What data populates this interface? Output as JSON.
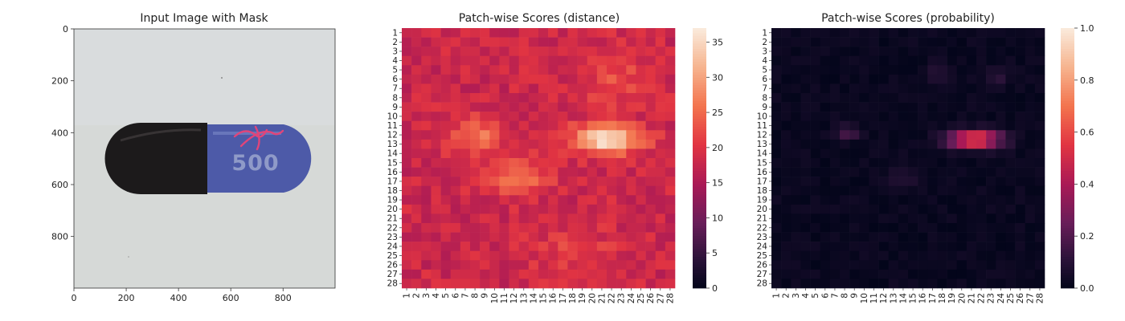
{
  "panels": [
    {
      "title": "Input Image with Mask",
      "image": {
        "background": "#d5d8d6",
        "pill_dark_color": "#1c1a1b",
        "pill_blue_color": "#4d5aa8",
        "imprint": "500",
        "mask_color": "#e0457a"
      }
    },
    {
      "title": "Patch-wise Scores (distance)"
    },
    {
      "title": "Patch-wise Scores (probability)"
    }
  ],
  "chart_data": [
    {
      "type": "image",
      "title": "Input Image with Mask",
      "xlim": [
        0,
        999
      ],
      "ylim": [
        999,
        0
      ],
      "x_ticks": [
        0,
        200,
        400,
        600,
        800
      ],
      "y_ticks": [
        0,
        200,
        400,
        600,
        800
      ]
    },
    {
      "type": "heatmap",
      "title": "Patch-wise Scores (distance)",
      "rows": 28,
      "cols": 28,
      "row_labels": [
        "1",
        "2",
        "3",
        "4",
        "5",
        "6",
        "7",
        "8",
        "9",
        "10",
        "11",
        "12",
        "13",
        "14",
        "15",
        "16",
        "17",
        "18",
        "19",
        "20",
        "21",
        "22",
        "23",
        "24",
        "25",
        "26",
        "27",
        "28"
      ],
      "col_labels": [
        "1",
        "2",
        "3",
        "4",
        "5",
        "6",
        "7",
        "8",
        "9",
        "10",
        "11",
        "12",
        "13",
        "14",
        "15",
        "16",
        "17",
        "18",
        "19",
        "20",
        "21",
        "22",
        "23",
        "24",
        "25",
        "26",
        "27",
        "28"
      ],
      "vmin": 0,
      "vmax": 37,
      "colorbar_ticks": [
        0,
        5,
        10,
        15,
        20,
        25,
        30,
        35
      ],
      "colormap": "rocket",
      "base": 18,
      "hotspots": [
        {
          "row": 12.5,
          "col": 21.5,
          "rx": 3.6,
          "ry": 1.5,
          "peak": 36
        },
        {
          "row": 12.3,
          "col": 8.2,
          "rx": 2.6,
          "ry": 1.9,
          "peak": 26
        },
        {
          "row": 16.5,
          "col": 12.5,
          "rx": 3.2,
          "ry": 2.0,
          "peak": 25
        },
        {
          "row": 6.0,
          "col": 22.5,
          "rx": 3.5,
          "ry": 3.5,
          "peak": 22
        },
        {
          "row": 24.5,
          "col": 18.0,
          "rx": 4.5,
          "ry": 2.8,
          "peak": 21
        }
      ],
      "noise": 2.5
    },
    {
      "type": "heatmap",
      "title": "Patch-wise Scores (probability)",
      "rows": 28,
      "cols": 28,
      "row_labels": [
        "1",
        "2",
        "3",
        "4",
        "5",
        "6",
        "7",
        "8",
        "9",
        "10",
        "11",
        "12",
        "13",
        "14",
        "15",
        "16",
        "17",
        "18",
        "19",
        "20",
        "21",
        "22",
        "23",
        "24",
        "25",
        "26",
        "27",
        "28"
      ],
      "col_labels": [
        "1",
        "2",
        "3",
        "4",
        "5",
        "6",
        "7",
        "8",
        "9",
        "10",
        "11",
        "12",
        "13",
        "14",
        "15",
        "16",
        "17",
        "18",
        "19",
        "20",
        "21",
        "22",
        "23",
        "24",
        "25",
        "26",
        "27",
        "28"
      ],
      "vmin": 0,
      "vmax": 1,
      "colorbar_ticks": [
        "0.0",
        "0.2",
        "0.4",
        "0.6",
        "0.8",
        "1.0"
      ],
      "colormap": "rocket",
      "base": 0.02,
      "hotspots": [
        {
          "row": 12.5,
          "col": 21.3,
          "rx": 2.6,
          "ry": 0.9,
          "peak": 0.68
        },
        {
          "row": 11.8,
          "col": 8.3,
          "rx": 1.3,
          "ry": 0.8,
          "peak": 0.17
        },
        {
          "row": 5.5,
          "col": 17.5,
          "rx": 1.0,
          "ry": 1.2,
          "peak": 0.12
        },
        {
          "row": 6.0,
          "col": 23.5,
          "rx": 1.0,
          "ry": 1.2,
          "peak": 0.11
        },
        {
          "row": 16.5,
          "col": 14.0,
          "rx": 1.6,
          "ry": 1.2,
          "peak": 0.09
        }
      ],
      "noise": 0.02
    }
  ]
}
